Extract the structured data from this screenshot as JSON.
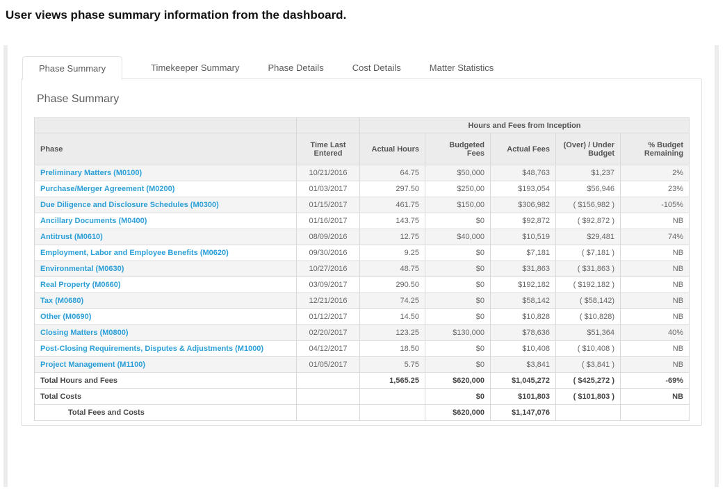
{
  "page_title": "User views phase summary information from the dashboard.",
  "colors": {
    "link_blue": "#2b9fd8",
    "alert_red": "#f5393f",
    "header_bg": "#ececec",
    "alt_row_bg": "#f4f4f4",
    "border": "#d9d9d9"
  },
  "tabs": [
    {
      "label": "Phase Summary",
      "active": true
    },
    {
      "label": "Timekeeper Summary",
      "active": false
    },
    {
      "label": "Phase Details",
      "active": false
    },
    {
      "label": "Cost Details",
      "active": false
    },
    {
      "label": "Matter Statistics",
      "active": false
    }
  ],
  "section_title": "Phase Summary",
  "table": {
    "group_header": "Hours and Fees from Inception",
    "columns": [
      "Phase",
      "Time Last Entered",
      "Actual Hours",
      "Budgeted Fees",
      "Actual Fees",
      "(Over) / Under Budget",
      "% Budget Remaining"
    ],
    "rows": [
      {
        "phase": "Preliminary Matters (M0100)",
        "time_last_entered": "10/21/2016",
        "actual_hours": "64.75",
        "budgeted_fees": "$50,000",
        "actual_fees": "$48,763",
        "over_under": "$1,237",
        "over_red": false,
        "pct_remaining": "2%",
        "pct_red": false
      },
      {
        "phase": "Purchase/Merger Agreement (M0200)",
        "time_last_entered": "01/03/2017",
        "actual_hours": "297.50",
        "budgeted_fees": "$250,00",
        "actual_fees": "$193,054",
        "over_under": "$56,946",
        "over_red": false,
        "pct_remaining": "23%",
        "pct_red": false
      },
      {
        "phase": "Due Diligence and Disclosure Schedules (M0300)",
        "time_last_entered": "01/15/2017",
        "actual_hours": "461.75",
        "budgeted_fees": "$150,00",
        "actual_fees": "$306,982",
        "over_under": "( $156,982 )",
        "over_red": true,
        "pct_remaining": "-105%",
        "pct_red": true
      },
      {
        "phase": "Ancillary Documents (M0400)",
        "time_last_entered": "01/16/2017",
        "actual_hours": "143.75",
        "budgeted_fees": "$0",
        "actual_fees": "$92,872",
        "over_under": "( $92,872 )",
        "over_red": true,
        "pct_remaining": "NB",
        "pct_red": true
      },
      {
        "phase": "Antitrust (M0610)",
        "time_last_entered": "08/09/2016",
        "actual_hours": "12.75",
        "budgeted_fees": "$40,000",
        "actual_fees": "$10,519",
        "over_under": "$29,481",
        "over_red": false,
        "pct_remaining": "74%",
        "pct_red": true
      },
      {
        "phase": "Employment, Labor and Employee Benefits (M0620)",
        "time_last_entered": "09/30/2016",
        "actual_hours": "9.25",
        "budgeted_fees": "$0",
        "actual_fees": "$7,181",
        "over_under": "( $7,181 )",
        "over_red": true,
        "pct_remaining": "NB",
        "pct_red": true
      },
      {
        "phase": "Environmental (M0630)",
        "time_last_entered": "10/27/2016",
        "actual_hours": "48.75",
        "budgeted_fees": "$0",
        "actual_fees": "$31,863",
        "over_under": "( $31,863 )",
        "over_red": true,
        "pct_remaining": "NB",
        "pct_red": true
      },
      {
        "phase": "Real Property (M0660)",
        "time_last_entered": "03/09/2017",
        "actual_hours": "290.50",
        "budgeted_fees": "$0",
        "actual_fees": "$192,182",
        "over_under": "( $192,182 )",
        "over_red": true,
        "pct_remaining": "NB",
        "pct_red": true
      },
      {
        "phase": "Tax (M0680)",
        "time_last_entered": "12/21/2016",
        "actual_hours": "74.25",
        "budgeted_fees": "$0",
        "actual_fees": "$58,142",
        "over_under": "( $58,142)",
        "over_red": true,
        "pct_remaining": "NB",
        "pct_red": true
      },
      {
        "phase": "Other (M0690)",
        "time_last_entered": "01/12/2017",
        "actual_hours": "14.50",
        "budgeted_fees": "$0",
        "actual_fees": "$10,828",
        "over_under": "( $10,828)",
        "over_red": true,
        "pct_remaining": "NB",
        "pct_red": true
      },
      {
        "phase": "Closing Matters (M0800)",
        "time_last_entered": "02/20/2017",
        "actual_hours": "123.25",
        "budgeted_fees": "$130,000",
        "actual_fees": "$78,636",
        "over_under": "$51,364",
        "over_red": false,
        "pct_remaining": "40%",
        "pct_red": false
      },
      {
        "phase": "Post-Closing Requirements, Disputes & Adjustments (M1000)",
        "time_last_entered": "04/12/2017",
        "actual_hours": "18.50",
        "budgeted_fees": "$0",
        "actual_fees": "$10,408",
        "over_under": "( $10,408 )",
        "over_red": true,
        "pct_remaining": "NB",
        "pct_red": true
      },
      {
        "phase": "Project Management (M1100)",
        "time_last_entered": "01/05/2017",
        "actual_hours": "5.75",
        "budgeted_fees": "$0",
        "actual_fees": "$3,841",
        "over_under": "( $3,841 )",
        "over_red": true,
        "pct_remaining": "NB",
        "pct_red": true
      }
    ],
    "totals": [
      {
        "label": "Total Hours and Fees",
        "indent": false,
        "time_last_entered": "",
        "actual_hours": "1,565.25",
        "budgeted_fees": "$620,000",
        "actual_fees": "$1,045,272",
        "over_under": "( $425,272 )",
        "over_red": true,
        "pct_remaining": "-69%",
        "pct_red": true
      },
      {
        "label": "Total Costs",
        "indent": false,
        "time_last_entered": "",
        "actual_hours": "",
        "budgeted_fees": "$0",
        "actual_fees": "$101,803",
        "over_under": "( $101,803 )",
        "over_red": true,
        "pct_remaining": "NB",
        "pct_red": true
      },
      {
        "label": "Total Fees and Costs",
        "indent": true,
        "time_last_entered": "",
        "actual_hours": "",
        "budgeted_fees": "$620,000",
        "actual_fees": "$1,147,076",
        "over_under": "",
        "over_red": false,
        "pct_remaining": "",
        "pct_red": false
      }
    ]
  }
}
